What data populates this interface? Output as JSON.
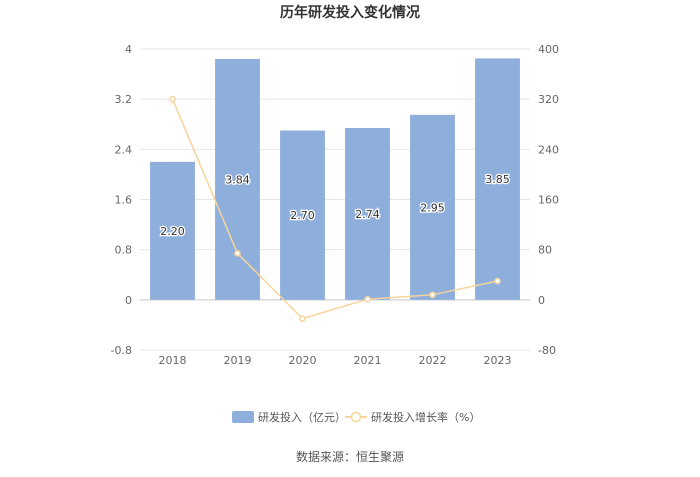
{
  "chart_data": {
    "type": "bar",
    "title": "历年研发投入变化情况",
    "categories": [
      "2018",
      "2019",
      "2020",
      "2021",
      "2022",
      "2023"
    ],
    "series": [
      {
        "name": "研发投入（亿元）",
        "type": "bar",
        "axis": "left",
        "values": [
          2.2,
          3.84,
          2.7,
          2.74,
          2.95,
          3.85
        ],
        "labels": [
          "2.20",
          "3.84",
          "2.70",
          "2.74",
          "2.95",
          "3.85"
        ],
        "color": "#8eaedc"
      },
      {
        "name": "研发投入增长率（%）",
        "type": "line",
        "axis": "right",
        "values": [
          320,
          74,
          -30,
          1,
          8,
          30
        ],
        "color": "#f7d49a"
      }
    ],
    "y_left": {
      "min": -0.8,
      "max": 4,
      "ticks": [
        "4",
        "3.2",
        "2.4",
        "1.6",
        "0.8",
        "0",
        "-0.8"
      ]
    },
    "y_right": {
      "min": -80,
      "max": 400,
      "ticks": [
        "400",
        "320",
        "240",
        "160",
        "80",
        "0",
        "-80"
      ]
    },
    "grid": true,
    "legend_position": "bottom"
  },
  "source": "数据来源：恒生聚源"
}
